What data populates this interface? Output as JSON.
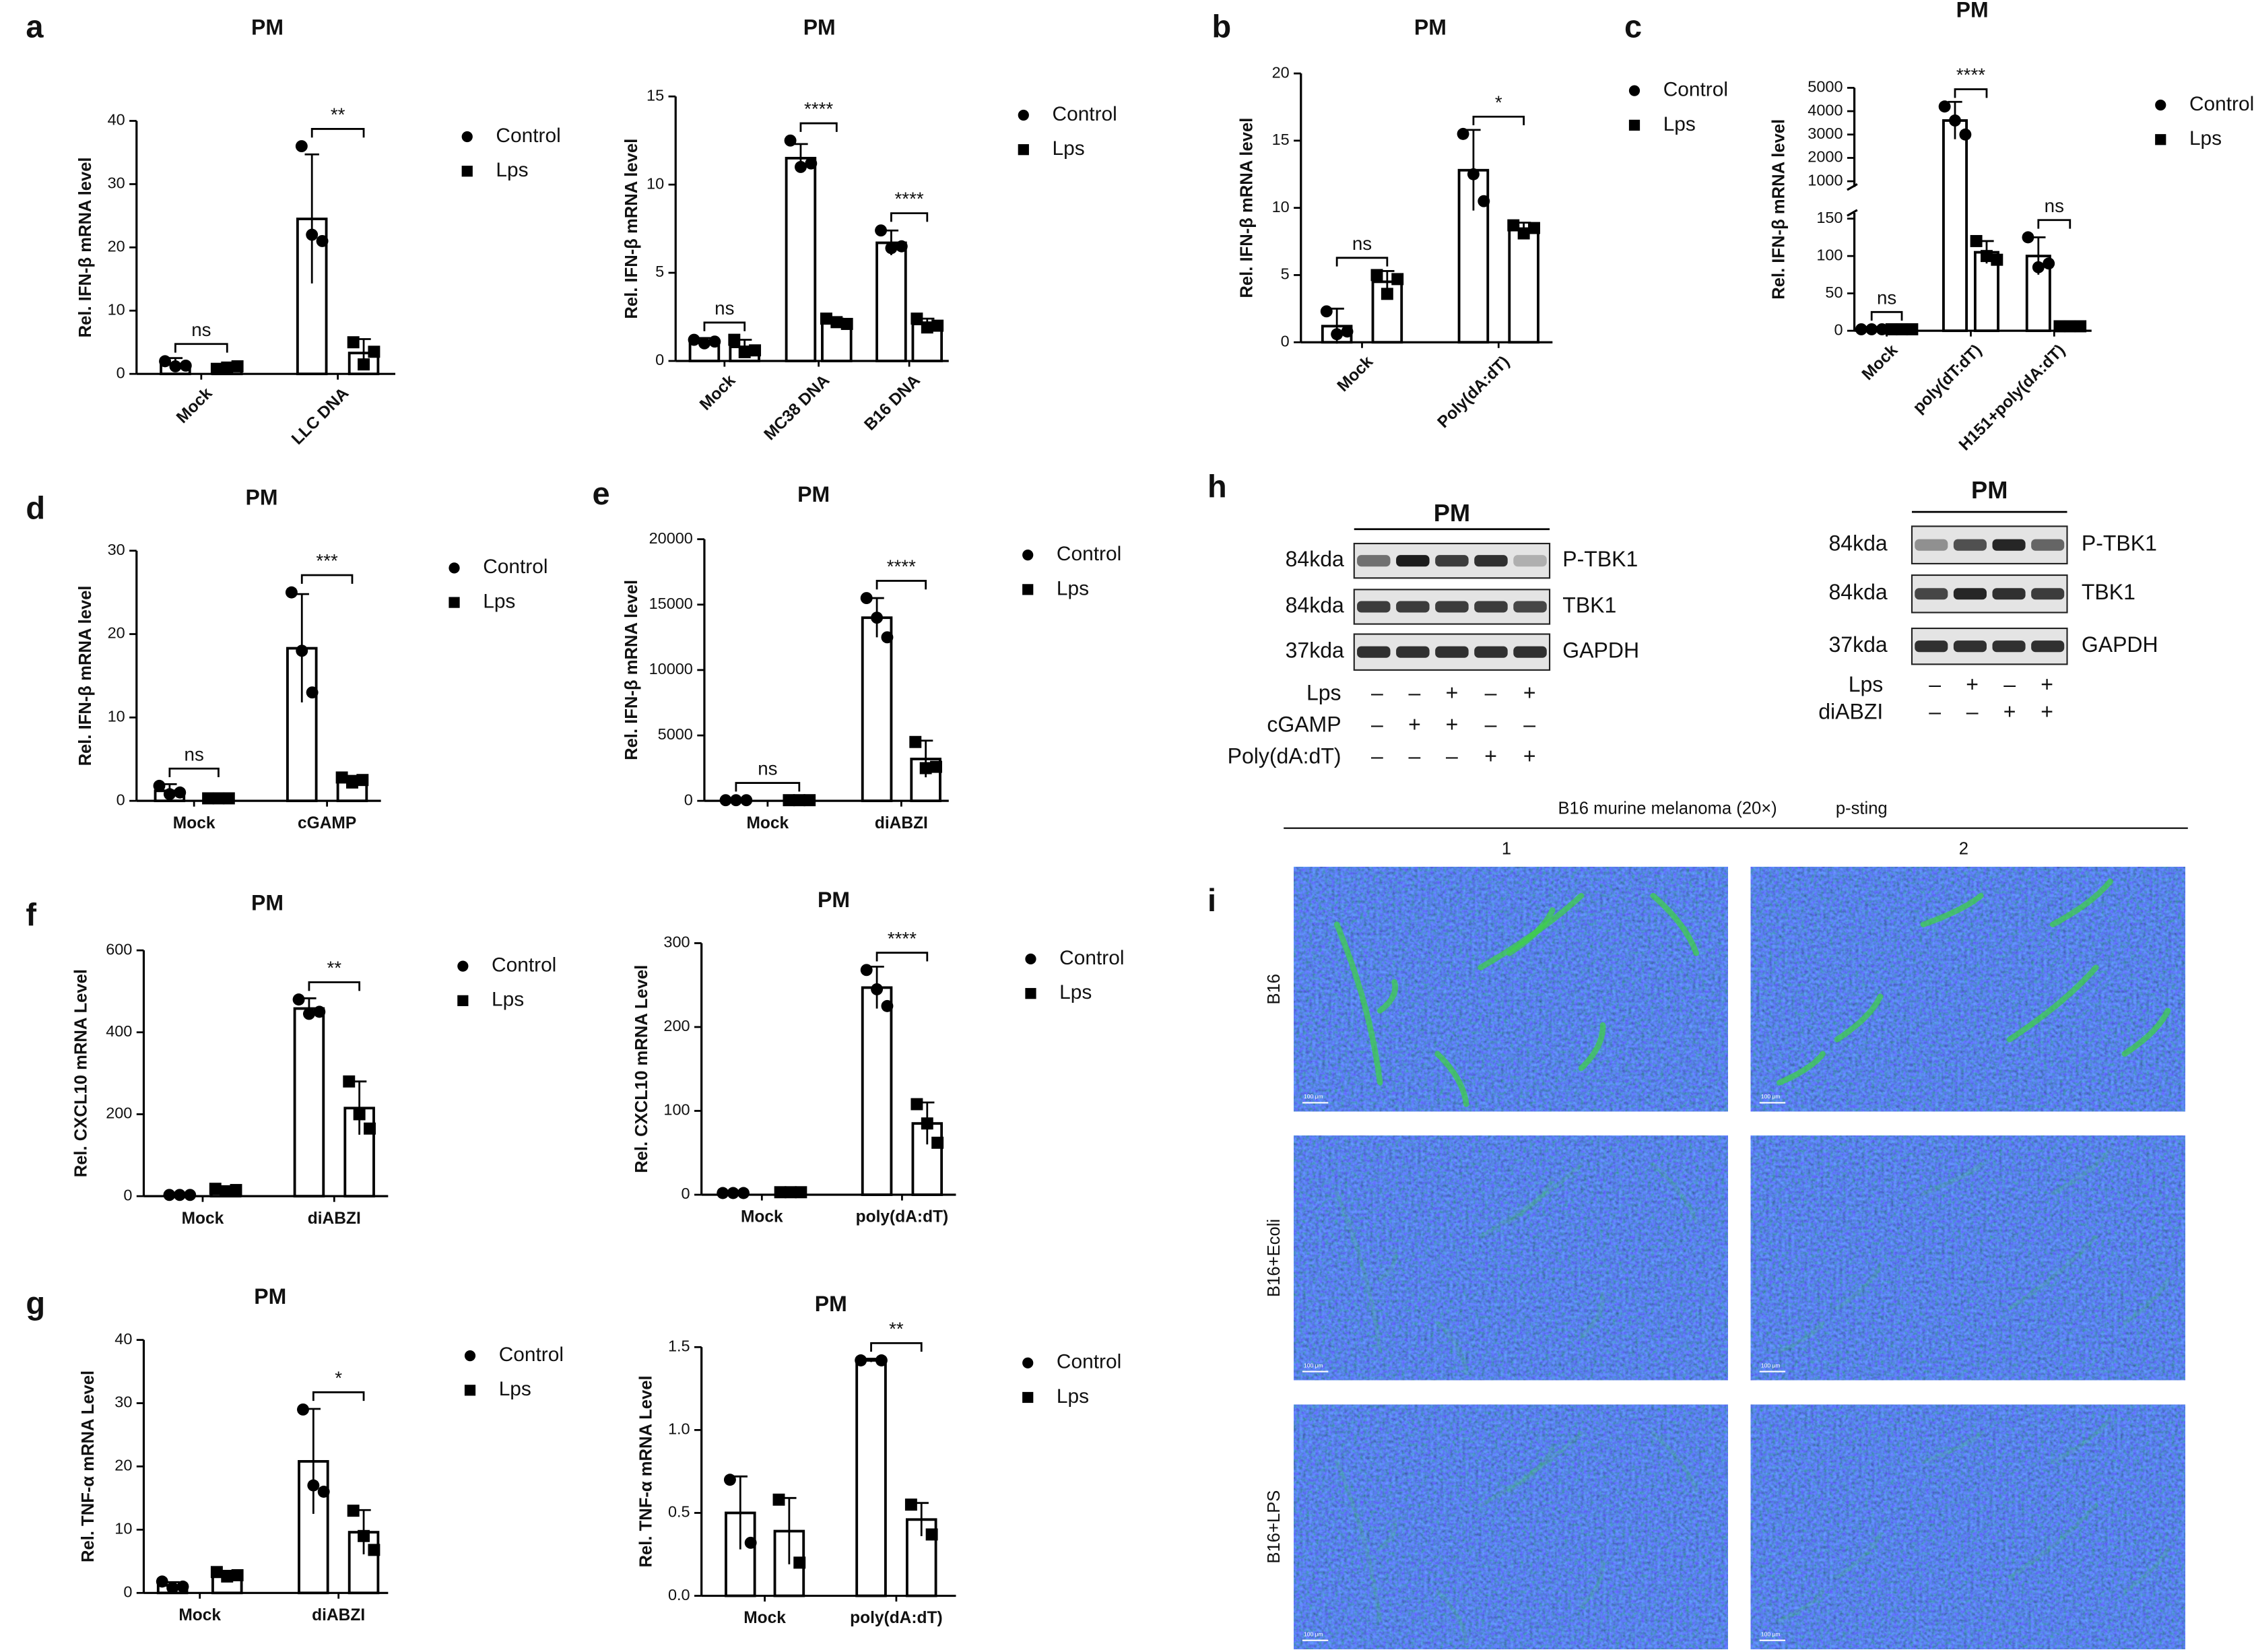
{
  "panel_labels": [
    "a",
    "b",
    "c",
    "d",
    "e",
    "f",
    "g",
    "h",
    "i"
  ],
  "chart_data": [
    {
      "type": "bar",
      "title": "PM",
      "ylabel": "Rel. IFN-β mRNA level",
      "categories": [
        "Mock",
        "LLC DNA"
      ],
      "ylim": [
        0,
        40
      ],
      "yticks": [
        0,
        10,
        20,
        30,
        40
      ],
      "series": [
        {
          "name": "Control",
          "color": "#000000",
          "marker": "circle",
          "values": [
            1.5,
            24.5
          ],
          "errors": [
            1,
            10.2
          ],
          "points": [
            [
              2,
              1.2,
              1.3
            ],
            [
              36,
              22,
              21
            ]
          ]
        },
        {
          "name": "Lps",
          "color": "#000000",
          "marker": "square",
          "values": [
            1,
            3.3
          ],
          "errors": [
            0.5,
            2.2
          ],
          "points": [
            [
              0.8,
              1,
              1.2
            ],
            [
              5,
              1.5,
              3.5
            ]
          ]
        }
      ],
      "annotations": [
        {
          "text": "ns",
          "category": 0
        },
        {
          "text": "**",
          "category": 1
        }
      ]
    },
    {
      "type": "bar",
      "title": "PM",
      "ylabel": "Rel. IFN-β mRNA level",
      "categories": [
        "Mock",
        "MC38 DNA",
        "B16 DNA"
      ],
      "ylim": [
        0,
        15
      ],
      "yticks": [
        0,
        5,
        10,
        15
      ],
      "series": [
        {
          "name": "Control",
          "color": "#000000",
          "marker": "circle",
          "values": [
            1.1,
            11.5,
            6.7
          ],
          "errors": [
            0.2,
            0.8,
            0.7
          ],
          "points": [
            [
              1.2,
              1,
              1.1
            ],
            [
              12.5,
              11,
              11.2
            ],
            [
              7.4,
              6.4,
              6.5
            ]
          ]
        },
        {
          "name": "Lps",
          "color": "#000000",
          "marker": "square",
          "values": [
            0.8,
            2.2,
            2.1
          ],
          "errors": [
            0.4,
            0.2,
            0.3
          ],
          "points": [
            [
              1.2,
              0.5,
              0.6
            ],
            [
              2.4,
              2.2,
              2.1
            ],
            [
              2.4,
              1.9,
              2
            ]
          ]
        }
      ],
      "annotations": [
        {
          "text": "ns",
          "category": 0
        },
        {
          "text": "****",
          "category": 1
        },
        {
          "text": "****",
          "category": 2
        }
      ]
    },
    {
      "type": "bar",
      "title": "PM",
      "ylabel": "Rel. IFN-β mRNA level",
      "categories": [
        "Mock",
        "Poly(dA:dT)"
      ],
      "ylim": [
        0,
        20
      ],
      "yticks": [
        0,
        5,
        10,
        15,
        20
      ],
      "series": [
        {
          "name": "Control",
          "color": "#000000",
          "marker": "circle",
          "values": [
            1.2,
            12.8
          ],
          "errors": [
            1.3,
            3
          ],
          "points": [
            [
              2.3,
              0.6,
              0.8
            ],
            [
              15.5,
              12.5,
              10.5
            ]
          ]
        },
        {
          "name": "Lps",
          "color": "#000000",
          "marker": "square",
          "values": [
            4.5,
            8.4
          ],
          "errors": [
            0.8,
            0.5
          ],
          "points": [
            [
              5,
              3.6,
              4.7
            ],
            [
              8.7,
              8.1,
              8.5
            ]
          ]
        }
      ],
      "annotations": [
        {
          "text": "ns",
          "category": 0
        },
        {
          "text": "*",
          "category": 1
        }
      ]
    },
    {
      "type": "bar",
      "title": "PM",
      "ylabel": "Rel. IFN-β mRNA level",
      "categories": [
        "Mock",
        "poly(dT:dT)",
        "H151+poly(dA:dT)"
      ],
      "ylim": [
        0,
        5000
      ],
      "ybreak": [
        150,
        1000
      ],
      "yticks": [
        0,
        50,
        100,
        150,
        1000,
        2000,
        3000,
        4000,
        5000
      ],
      "series": [
        {
          "name": "Control",
          "color": "#000000",
          "marker": "circle",
          "values": [
            2,
            3600,
            100
          ],
          "errors": [
            1,
            800,
            25
          ],
          "points": [
            [
              2,
              2,
              2
            ],
            [
              4200,
              3600,
              3000
            ],
            [
              125,
              85,
              90
            ]
          ]
        },
        {
          "name": "Lps",
          "color": "#000000",
          "marker": "square",
          "values": [
            2,
            105,
            6
          ],
          "errors": [
            1,
            15,
            1
          ],
          "points": [
            [
              2,
              2,
              2
            ],
            [
              120,
              100,
              95
            ],
            [
              6,
              6,
              6
            ]
          ]
        }
      ],
      "annotations": [
        {
          "text": "ns",
          "category": 0
        },
        {
          "text": "****",
          "category": 1
        },
        {
          "text": "ns",
          "category": 2
        }
      ]
    },
    {
      "type": "bar",
      "title": "PM",
      "ylabel": "Rel. IFN-β mRNA level",
      "categories": [
        "Mock",
        "cGAMP"
      ],
      "ylim": [
        0,
        30
      ],
      "yticks": [
        0,
        10,
        20,
        30
      ],
      "series": [
        {
          "name": "Control",
          "color": "#000000",
          "marker": "circle",
          "values": [
            1.2,
            18.3
          ],
          "errors": [
            0.8,
            6.5
          ],
          "points": [
            [
              1.8,
              0.8,
              1
            ],
            [
              25,
              18,
              13
            ]
          ]
        },
        {
          "name": "Lps",
          "color": "#000000",
          "marker": "square",
          "values": [
            0.3,
            2.5
          ],
          "errors": [
            0.2,
            0.5
          ],
          "points": [
            [
              0.3,
              0.3,
              0.3
            ],
            [
              2.8,
              2.2,
              2.5
            ]
          ]
        }
      ],
      "annotations": [
        {
          "text": "ns",
          "category": 0
        },
        {
          "text": "***",
          "category": 1
        }
      ]
    },
    {
      "type": "bar",
      "title": "PM",
      "ylabel": "Rel. IFN-β mRNA level",
      "categories": [
        "Mock",
        "diABZI"
      ],
      "ylim": [
        0,
        20000
      ],
      "yticks": [
        0,
        5000,
        10000,
        15000,
        20000
      ],
      "series": [
        {
          "name": "Control",
          "color": "#000000",
          "marker": "circle",
          "values": [
            50,
            14000
          ],
          "errors": [
            30,
            1500
          ],
          "points": [
            [
              50,
              50,
              50
            ],
            [
              15500,
              14000,
              12500
            ]
          ]
        },
        {
          "name": "Lps",
          "color": "#000000",
          "marker": "square",
          "values": [
            50,
            3200
          ],
          "errors": [
            30,
            1400
          ],
          "points": [
            [
              50,
              50,
              50
            ],
            [
              4500,
              2500,
              2600
            ]
          ]
        }
      ],
      "annotations": [
        {
          "text": "ns",
          "category": 0
        },
        {
          "text": "****",
          "category": 1
        }
      ]
    },
    {
      "type": "bar",
      "title": "PM",
      "ylabel": "Rel. CXCL10 mRNA Level",
      "categories": [
        "Mock",
        "diABZI"
      ],
      "ylim": [
        0,
        600
      ],
      "yticks": [
        0,
        200,
        400,
        600
      ],
      "series": [
        {
          "name": "Control",
          "color": "#000000",
          "marker": "circle",
          "values": [
            3,
            458
          ],
          "errors": [
            2,
            25
          ],
          "points": [
            [
              3,
              3,
              3
            ],
            [
              480,
              445,
              450
            ]
          ]
        },
        {
          "name": "Lps",
          "color": "#000000",
          "marker": "square",
          "values": [
            15,
            215
          ],
          "errors": [
            5,
            65
          ],
          "points": [
            [
              18,
              12,
              15
            ],
            [
              280,
              200,
              165
            ]
          ]
        }
      ],
      "annotations": [
        {
          "text": "**",
          "category": 1
        }
      ]
    },
    {
      "type": "bar",
      "title": "PM",
      "ylabel": "Rel. CXCL10 mRNA Level",
      "categories": [
        "Mock",
        "poly(dA:dT)"
      ],
      "ylim": [
        0,
        300
      ],
      "yticks": [
        0,
        100,
        200,
        300
      ],
      "series": [
        {
          "name": "Control",
          "color": "#000000",
          "marker": "circle",
          "values": [
            2,
            247
          ],
          "errors": [
            1,
            25
          ],
          "points": [
            [
              2,
              2,
              2
            ],
            [
              268,
              245,
              225
            ]
          ]
        },
        {
          "name": "Lps",
          "color": "#000000",
          "marker": "square",
          "values": [
            3,
            85
          ],
          "errors": [
            1,
            25
          ],
          "points": [
            [
              3,
              3,
              3
            ],
            [
              108,
              85,
              62
            ]
          ]
        }
      ],
      "annotations": [
        {
          "text": "****",
          "category": 1
        }
      ]
    },
    {
      "type": "bar",
      "title": "PM",
      "ylabel": "Rel. TNF-α mRNA Level",
      "categories": [
        "Mock",
        "diABZI"
      ],
      "ylim": [
        0,
        40
      ],
      "yticks": [
        0,
        10,
        20,
        30,
        40
      ],
      "series": [
        {
          "name": "Control",
          "color": "#000000",
          "marker": "circle",
          "values": [
            1.2,
            20.8
          ],
          "errors": [
            0.5,
            8.3
          ],
          "points": [
            [
              1.8,
              0.8,
              1
            ],
            [
              29,
              17,
              16
            ]
          ]
        },
        {
          "name": "Lps",
          "color": "#000000",
          "marker": "square",
          "values": [
            2.9,
            9.6
          ],
          "errors": [
            0.6,
            3.5
          ],
          "points": [
            [
              3.3,
              2.6,
              2.8
            ],
            [
              13,
              9,
              6.8
            ]
          ]
        }
      ],
      "annotations": [
        {
          "text": "*",
          "category": 1
        }
      ]
    },
    {
      "type": "bar",
      "title": "PM",
      "ylabel": "Rel. TNF-α mRNA Level",
      "categories": [
        "Mock",
        "poly(dA:dT)"
      ],
      "ylim": [
        0,
        1.5
      ],
      "yticks": [
        {
          "value": 0,
          "label": "0.0"
        },
        {
          "value": 0.5,
          "label": "0.5"
        },
        {
          "value": 1,
          "label": "1.0"
        },
        {
          "value": 1.5,
          "label": "1.5"
        }
      ],
      "series": [
        {
          "name": "Control",
          "color": "#000000",
          "marker": "circle",
          "values": [
            0.5,
            1.42
          ],
          "errors": [
            0.22,
            0.01
          ],
          "points": [
            [
              0.7,
              0.32
            ],
            [
              1.42,
              1.42
            ]
          ]
        },
        {
          "name": "Lps",
          "color": "#000000",
          "marker": "square",
          "values": [
            0.39,
            0.46
          ],
          "errors": [
            0.2,
            0.1
          ],
          "points": [
            [
              0.58,
              0.2
            ],
            [
              0.55,
              0.37
            ]
          ]
        }
      ],
      "annotations": [
        {
          "text": "**",
          "category": 1
        }
      ]
    }
  ],
  "blots": [
    {
      "title": "PM",
      "rows": [
        {
          "size": "84kda",
          "protein": "P-TBK1"
        },
        {
          "size": "84kda",
          "protein": "TBK1"
        },
        {
          "size": "37kda",
          "protein": "GAPDH"
        }
      ],
      "conditions": [
        {
          "name": "Lps",
          "signs": [
            "–",
            "–",
            "+",
            "–",
            "+"
          ]
        },
        {
          "name": "cGAMP",
          "signs": [
            "–",
            "+",
            "+",
            "–",
            "–"
          ]
        },
        {
          "name": "Poly(dA:dT)",
          "signs": [
            "–",
            "–",
            "–",
            "+",
            "+"
          ]
        }
      ]
    },
    {
      "title": "PM",
      "rows": [
        {
          "size": "84kda",
          "protein": "P-TBK1"
        },
        {
          "size": "84kda",
          "protein": "TBK1"
        },
        {
          "size": "37kda",
          "protein": "GAPDH"
        }
      ],
      "conditions": [
        {
          "name": "Lps",
          "signs": [
            "–",
            "+",
            "–",
            "+"
          ]
        },
        {
          "name": "diABZI",
          "signs": [
            "–",
            "–",
            "+",
            "+"
          ]
        }
      ]
    }
  ],
  "microscopy": {
    "title": "B16 murine melanoma (20×)",
    "stain": "p-sting",
    "columns": [
      "1",
      "2"
    ],
    "rows": [
      "B16",
      "B16+Ecoli",
      "B16+LPS"
    ],
    "scale_bar": "100 μm"
  }
}
